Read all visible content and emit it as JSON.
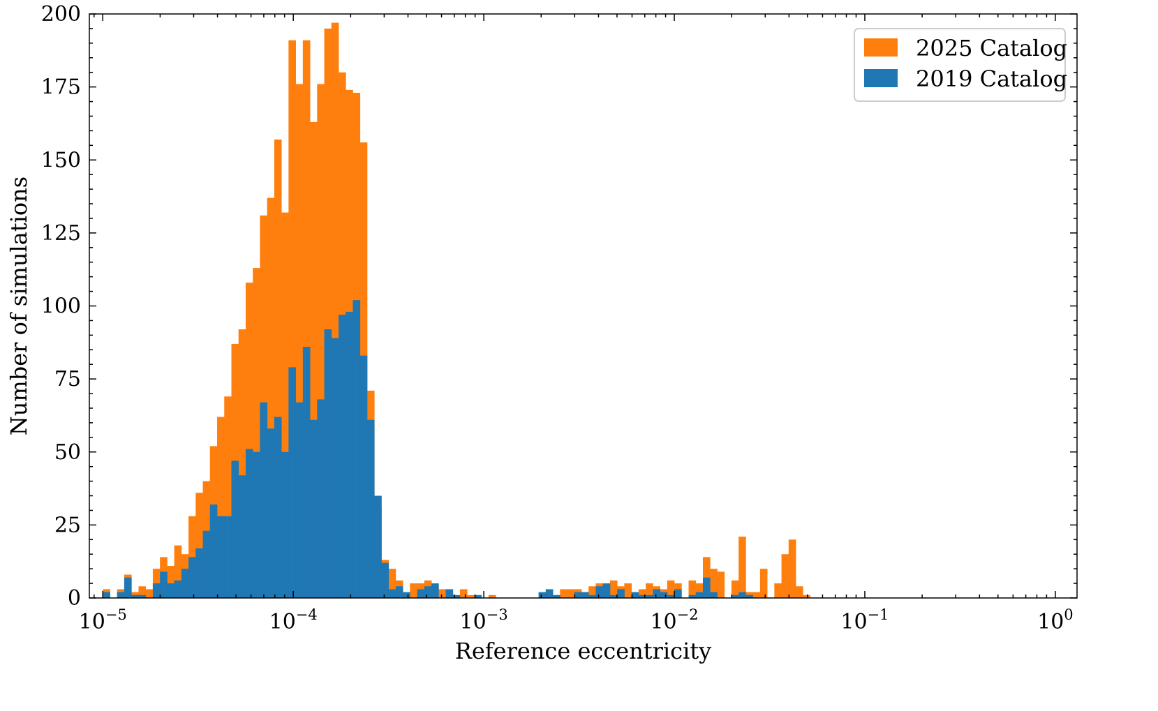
{
  "chart_data": {
    "type": "bar",
    "subtype": "overlaid-histogram",
    "xlabel": "Reference eccentricity",
    "ylabel": "Number of simulations",
    "xscale": "log",
    "xlim": [
      8.5e-06,
      1.3
    ],
    "ylim": [
      0,
      200
    ],
    "yticks": [
      0,
      25,
      50,
      75,
      100,
      125,
      150,
      175,
      200
    ],
    "xticks": [
      {
        "value": 1e-05,
        "base": "10",
        "exp": "−5"
      },
      {
        "value": 0.0001,
        "base": "10",
        "exp": "−4"
      },
      {
        "value": 0.001,
        "base": "10",
        "exp": "−3"
      },
      {
        "value": 0.01,
        "base": "10",
        "exp": "−2"
      },
      {
        "value": 0.1,
        "base": "10",
        "exp": "−1"
      },
      {
        "value": 1,
        "base": "10",
        "exp": "0"
      }
    ],
    "bins": {
      "log10_start": -5,
      "log10_end": -0.125,
      "count": 130
    },
    "legend_position": "top-right",
    "grid": false,
    "series": [
      {
        "name": "2025 Catalog",
        "color": "#ff7f0e",
        "values": [
          3,
          0,
          3,
          8,
          2,
          4,
          3,
          10,
          14,
          11,
          18,
          15,
          28,
          36,
          40,
          52,
          62,
          69,
          87,
          92,
          108,
          113,
          131,
          137,
          157,
          132,
          191,
          176,
          191,
          163,
          176,
          195,
          197,
          180,
          174,
          173,
          156,
          71,
          31,
          13,
          10,
          6,
          0,
          5,
          5,
          6,
          0,
          3,
          2,
          0,
          3,
          1,
          0,
          0,
          1,
          0,
          0,
          0,
          0,
          0,
          0,
          0,
          0,
          0,
          3,
          3,
          3,
          2,
          4,
          5,
          1,
          6,
          4,
          5,
          0,
          3,
          5,
          4,
          3,
          6,
          5,
          0,
          6,
          5,
          14,
          10,
          9,
          0,
          6,
          21,
          2,
          2,
          10,
          0,
          5,
          15,
          20,
          4,
          1,
          0,
          0,
          0,
          0,
          0,
          0,
          0,
          0,
          0,
          0,
          0,
          0,
          0,
          0,
          0,
          0,
          0,
          0,
          0,
          0,
          0,
          0,
          0,
          0,
          0,
          0,
          0,
          0,
          0,
          0,
          0
        ]
      },
      {
        "name": "2019 Catalog",
        "color": "#1f77b4",
        "values": [
          2,
          0,
          2,
          7,
          1,
          1,
          0,
          5,
          9,
          5,
          6,
          10,
          14,
          17,
          23,
          32,
          28,
          28,
          47,
          42,
          51,
          50,
          67,
          58,
          62,
          50,
          79,
          67,
          86,
          61,
          68,
          92,
          89,
          97,
          98,
          102,
          83,
          61,
          35,
          12,
          3,
          4,
          2,
          0,
          3,
          4,
          5,
          0,
          3,
          1,
          0,
          0,
          1,
          0,
          0,
          0,
          0,
          0,
          0,
          0,
          0,
          2,
          3,
          1,
          0,
          0,
          2,
          2,
          1,
          4,
          5,
          1,
          3,
          0,
          2,
          1,
          1,
          3,
          2,
          1,
          3,
          0,
          1,
          2,
          7,
          2,
          0,
          0,
          1,
          2,
          1,
          0,
          0,
          0,
          0,
          0,
          0,
          0,
          0,
          0,
          0,
          0,
          0,
          0,
          0,
          0,
          0,
          0,
          0,
          0,
          0,
          0,
          0,
          0,
          0,
          0,
          0,
          0,
          0,
          0,
          0,
          0,
          0,
          0,
          0,
          0,
          0,
          0,
          0,
          0
        ]
      }
    ]
  }
}
